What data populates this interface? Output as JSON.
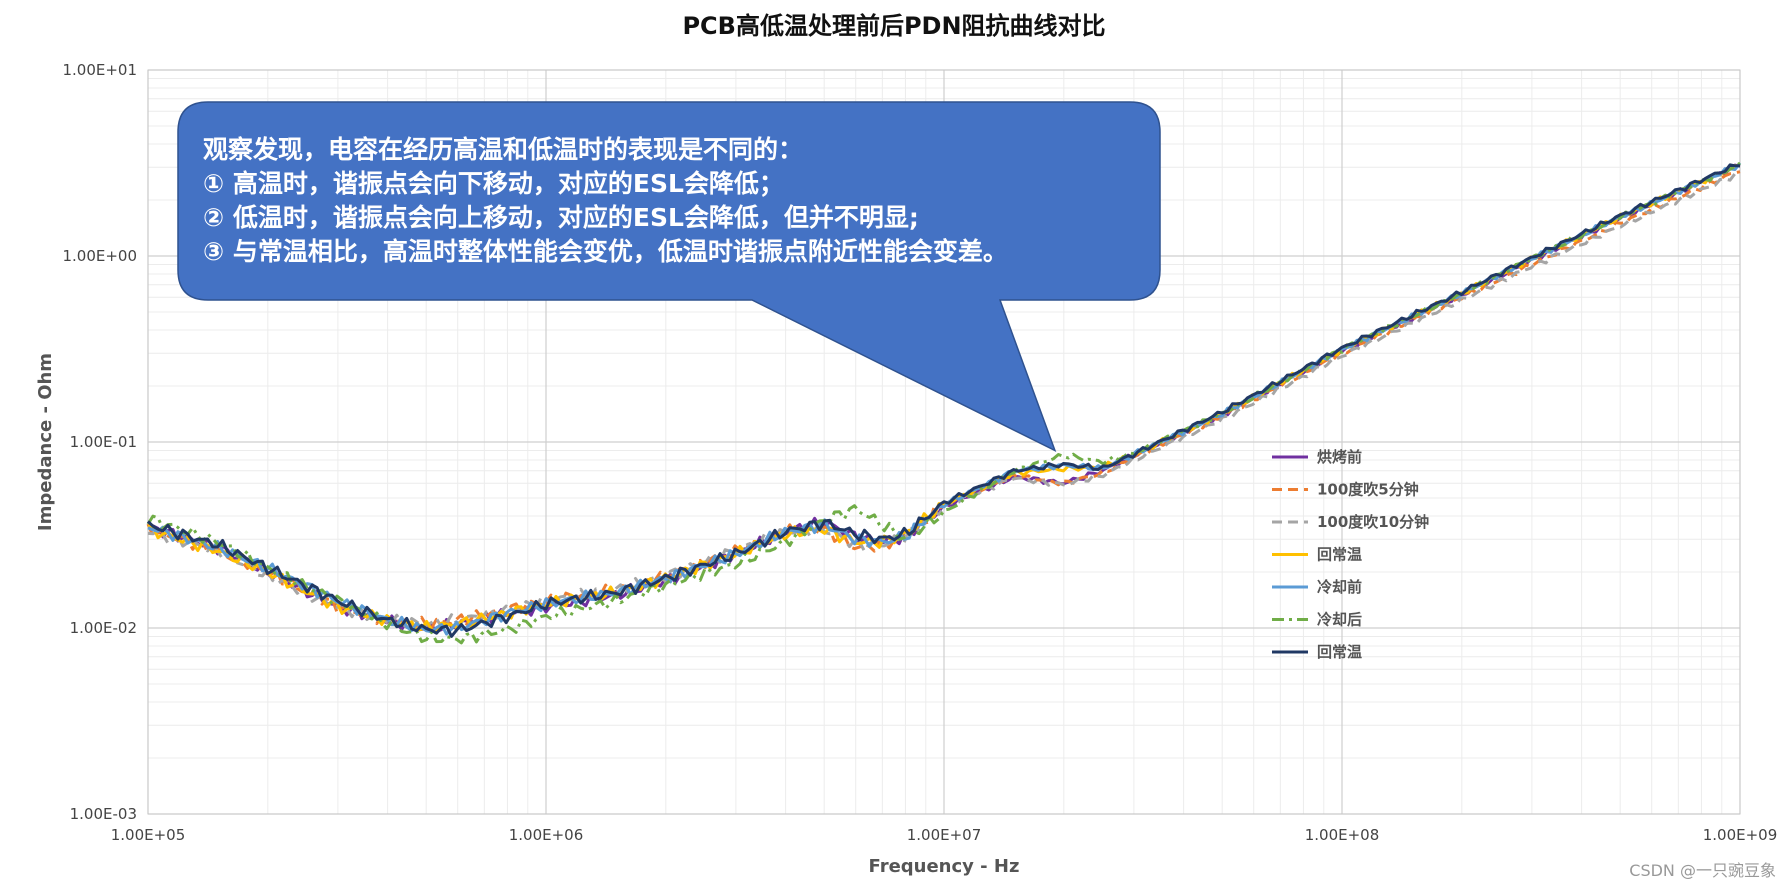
{
  "chart_data": {
    "type": "line",
    "title": "PCB高低温处理前后PDN阻抗曲线对比",
    "xlabel": "Frequency - Hz",
    "ylabel": "Impedance - Ohm",
    "xscale": "log",
    "yscale": "log",
    "xlim": [
      100000,
      1000000000
    ],
    "ylim": [
      0.001,
      10
    ],
    "x_ticks": [
      "1.00E+05",
      "1.00E+06",
      "1.00E+07",
      "1.00E+08",
      "1.00E+09"
    ],
    "y_ticks": [
      "1.00E-03",
      "1.00E-02",
      "1.00E-01",
      "1.00E+00",
      "1.00E+01"
    ],
    "grid": true,
    "legend_position": "right",
    "series": [
      {
        "name": "烘烤前",
        "color": "#7030A0",
        "dash": "solid",
        "x": [
          100000,
          150000,
          200000,
          300000,
          400000,
          500000,
          600000,
          800000,
          1000000,
          1500000,
          2000000,
          3000000,
          4000000,
          5000000,
          6000000,
          7000000,
          8000000,
          10000000,
          15000000,
          20000000,
          25000000,
          30000000,
          50000000,
          100000000,
          200000000,
          300000000,
          500000000,
          1000000000
        ],
        "y": [
          0.035,
          0.027,
          0.02,
          0.013,
          0.011,
          0.0098,
          0.0105,
          0.012,
          0.013,
          0.015,
          0.018,
          0.025,
          0.033,
          0.037,
          0.031,
          0.029,
          0.031,
          0.045,
          0.065,
          0.06,
          0.07,
          0.085,
          0.14,
          0.31,
          0.62,
          0.95,
          1.6,
          3.1
        ]
      },
      {
        "name": "100度吹5分钟",
        "color": "#ED7D31",
        "dash": "10,6",
        "x": [
          100000,
          150000,
          200000,
          300000,
          400000,
          500000,
          600000,
          800000,
          1000000,
          1500000,
          2000000,
          3000000,
          4000000,
          5000000,
          6000000,
          7000000,
          8000000,
          10000000,
          15000000,
          20000000,
          25000000,
          30000000,
          50000000,
          100000000,
          200000000,
          300000000,
          500000000,
          1000000000
        ],
        "y": [
          0.034,
          0.026,
          0.02,
          0.013,
          0.011,
          0.0105,
          0.011,
          0.0125,
          0.014,
          0.016,
          0.019,
          0.026,
          0.033,
          0.034,
          0.027,
          0.028,
          0.031,
          0.046,
          0.066,
          0.06,
          0.068,
          0.083,
          0.138,
          0.3,
          0.6,
          0.9,
          1.5,
          2.9
        ]
      },
      {
        "name": "100度吹10分钟",
        "color": "#A5A5A5",
        "dash": "10,6",
        "x": [
          100000,
          150000,
          200000,
          300000,
          400000,
          500000,
          600000,
          800000,
          1000000,
          1500000,
          2000000,
          3000000,
          4000000,
          5000000,
          6000000,
          7000000,
          8000000,
          10000000,
          15000000,
          20000000,
          25000000,
          30000000,
          50000000,
          100000000,
          200000000,
          300000000,
          500000000,
          1000000000
        ],
        "y": [
          0.033,
          0.026,
          0.019,
          0.013,
          0.011,
          0.0105,
          0.011,
          0.0125,
          0.014,
          0.016,
          0.019,
          0.026,
          0.033,
          0.034,
          0.028,
          0.028,
          0.031,
          0.045,
          0.064,
          0.059,
          0.066,
          0.08,
          0.132,
          0.29,
          0.58,
          0.88,
          1.45,
          2.8
        ]
      },
      {
        "name": "回常温",
        "color": "#FFC000",
        "dash": "solid",
        "x": [
          100000,
          150000,
          200000,
          300000,
          400000,
          500000,
          600000,
          800000,
          1000000,
          1500000,
          2000000,
          3000000,
          4000000,
          5000000,
          6000000,
          7000000,
          8000000,
          10000000,
          15000000,
          20000000,
          25000000,
          30000000,
          50000000,
          100000000,
          200000000,
          300000000,
          500000000,
          1000000000
        ],
        "y": [
          0.034,
          0.026,
          0.02,
          0.013,
          0.011,
          0.01,
          0.0105,
          0.012,
          0.0135,
          0.0155,
          0.0185,
          0.025,
          0.032,
          0.034,
          0.029,
          0.029,
          0.032,
          0.046,
          0.068,
          0.072,
          0.073,
          0.086,
          0.142,
          0.315,
          0.63,
          0.97,
          1.62,
          3.1
        ]
      },
      {
        "name": "冷却前",
        "color": "#5B9BD5",
        "dash": "solid",
        "x": [
          100000,
          150000,
          200000,
          300000,
          400000,
          500000,
          600000,
          800000,
          1000000,
          1500000,
          2000000,
          3000000,
          4000000,
          5000000,
          6000000,
          7000000,
          8000000,
          10000000,
          15000000,
          20000000,
          25000000,
          30000000,
          50000000,
          100000000,
          200000000,
          300000000,
          500000000,
          1000000000
        ],
        "y": [
          0.035,
          0.027,
          0.021,
          0.014,
          0.011,
          0.0098,
          0.01,
          0.012,
          0.0135,
          0.0155,
          0.0185,
          0.025,
          0.033,
          0.036,
          0.03,
          0.029,
          0.031,
          0.046,
          0.07,
          0.075,
          0.072,
          0.086,
          0.142,
          0.315,
          0.63,
          0.97,
          1.62,
          3.1
        ]
      },
      {
        "name": "冷却后",
        "color": "#70AD47",
        "dash": "12,5,3,5",
        "x": [
          100000,
          150000,
          200000,
          300000,
          400000,
          500000,
          600000,
          800000,
          1000000,
          1500000,
          2000000,
          3000000,
          4000000,
          5000000,
          6000000,
          7000000,
          8000000,
          10000000,
          15000000,
          20000000,
          25000000,
          30000000,
          50000000,
          100000000,
          200000000,
          300000000,
          500000000,
          1000000000
        ],
        "y": [
          0.039,
          0.029,
          0.021,
          0.014,
          0.0105,
          0.0088,
          0.0087,
          0.0098,
          0.0115,
          0.014,
          0.017,
          0.022,
          0.029,
          0.038,
          0.044,
          0.036,
          0.03,
          0.042,
          0.07,
          0.085,
          0.078,
          0.087,
          0.142,
          0.315,
          0.63,
          0.97,
          1.62,
          3.1
        ]
      },
      {
        "name": "回常温",
        "color": "#203864",
        "dash": "solid",
        "x": [
          100000,
          150000,
          200000,
          300000,
          400000,
          500000,
          600000,
          800000,
          1000000,
          1500000,
          2000000,
          3000000,
          4000000,
          5000000,
          6000000,
          7000000,
          8000000,
          10000000,
          15000000,
          20000000,
          25000000,
          30000000,
          50000000,
          100000000,
          200000000,
          300000000,
          500000000,
          1000000000
        ],
        "y": [
          0.036,
          0.028,
          0.021,
          0.014,
          0.011,
          0.0098,
          0.0097,
          0.0115,
          0.0135,
          0.0155,
          0.0185,
          0.025,
          0.033,
          0.037,
          0.032,
          0.03,
          0.032,
          0.047,
          0.07,
          0.076,
          0.072,
          0.086,
          0.145,
          0.32,
          0.64,
          0.98,
          1.65,
          3.15
        ]
      }
    ],
    "annotation": {
      "lines": [
        "观察发现，电容在经历高温和低温时的表现是不同的：",
        "①   高温时，谐振点会向下移动，对应的ESL会降低；",
        "②   低温时，谐振点会向上移动，对应的ESL会降低，但并不明显;",
        "③   与常温相比，高温时整体性能会变优，低温时谐振点附近性能会变差。"
      ],
      "fill_color": "#4472C4",
      "pointer_x": 19000000,
      "pointer_y": 0.09
    }
  },
  "watermark": "CSDN @一只豌豆象"
}
